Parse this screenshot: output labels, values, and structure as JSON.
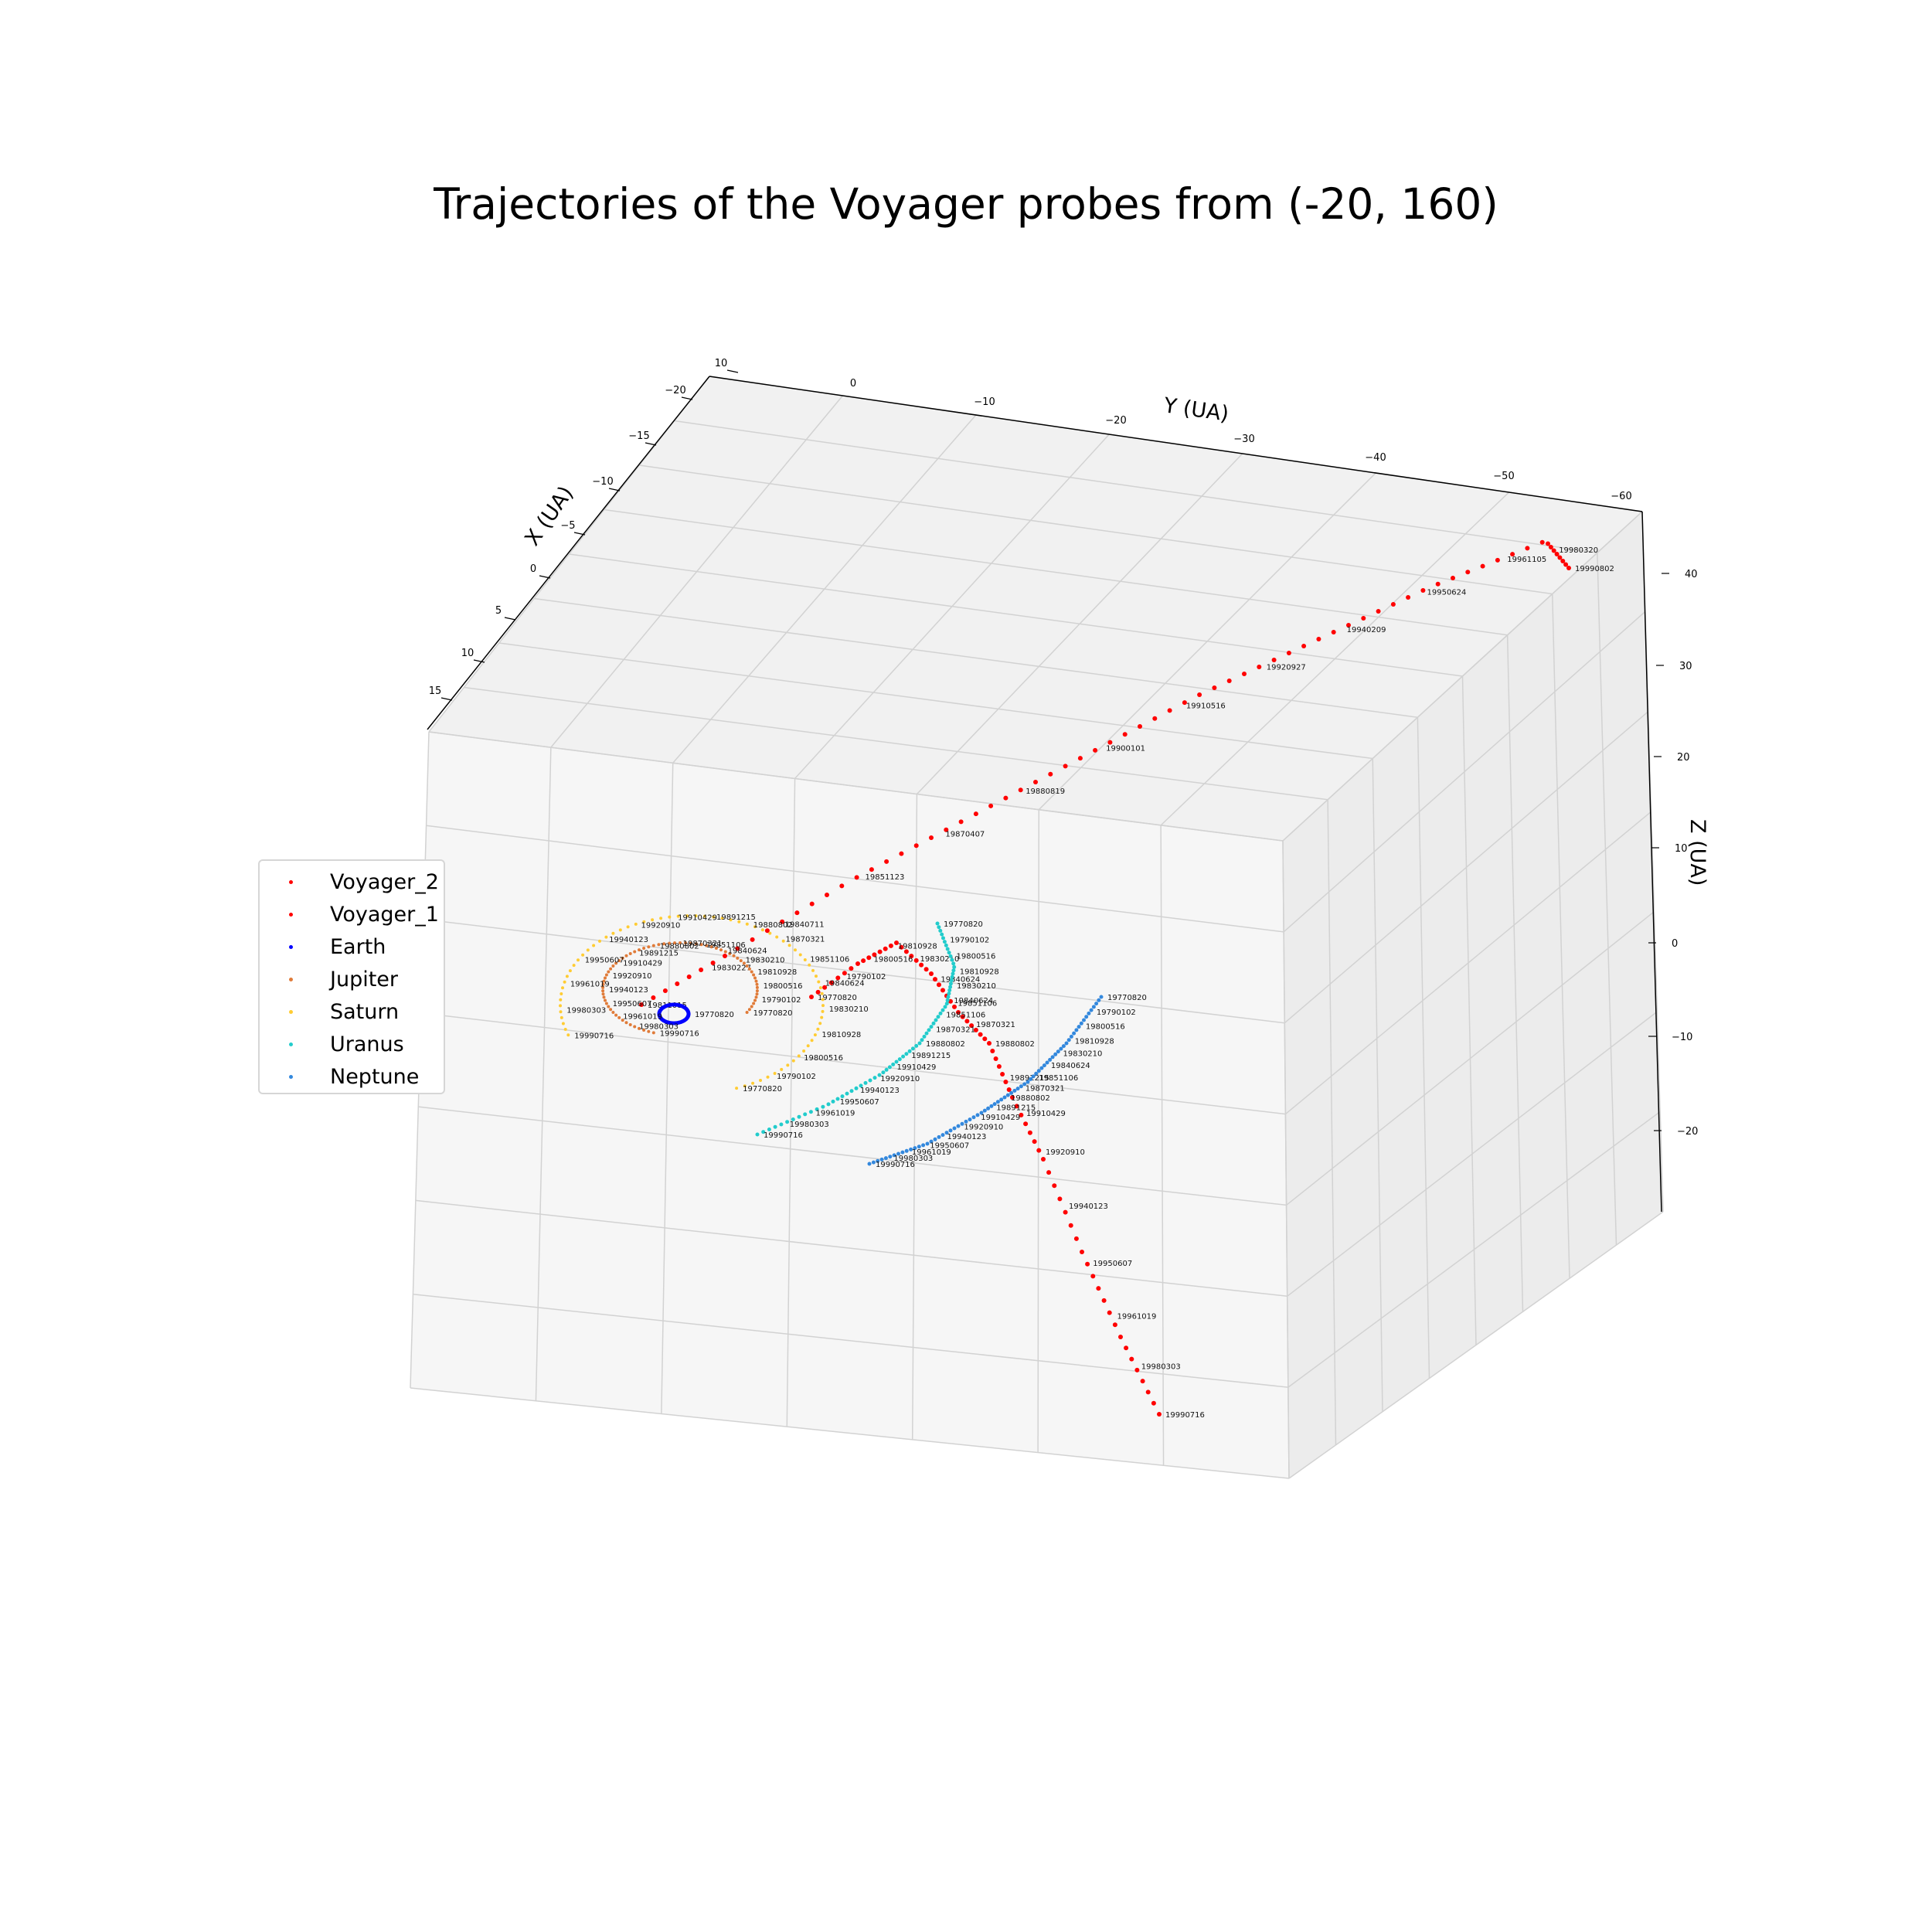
{
  "chart_data": {
    "type": "scatter3d",
    "title": "Trajectories of the Voyager probes from (-20, 160)",
    "xlabel": "X (UA)",
    "ylabel": "Y (UA)",
    "zlabel": "Z (UA)",
    "x_ticks": [
      "10",
      "−20",
      "−15",
      "−10",
      "−5",
      "0",
      "5",
      "10",
      "15"
    ],
    "y_ticks": [
      "0",
      "−10",
      "−20",
      "−30",
      "−40",
      "−50",
      "−60"
    ],
    "z_ticks": [
      "40",
      "30",
      "20",
      "10",
      "0",
      "−10",
      "−20"
    ],
    "grid": true,
    "legend_position": "left",
    "series": [
      {
        "name": "Voyager_2",
        "color": "#ff0000",
        "labels": [
          "19770820",
          "19790102",
          "19800516",
          "19810928",
          "19830210",
          "19840624",
          "19851106",
          "19870321",
          "19880802",
          "19891215",
          "19910429",
          "19920910",
          "19940123",
          "19950607",
          "19961019",
          "19980303",
          "19990716"
        ]
      },
      {
        "name": "Voyager_1",
        "color": "#ff0000",
        "labels": [
          "19811015",
          "19830227",
          "19840711",
          "19851123",
          "19870407",
          "19880819",
          "19900101",
          "19910516",
          "19920927",
          "19940209",
          "19950624",
          "19961105",
          "19980320",
          "19990802"
        ]
      },
      {
        "name": "Earth",
        "color": "#0000ff",
        "labels": [
          "19770820"
        ]
      },
      {
        "name": "Jupiter",
        "color": "#e07b39",
        "labels": [
          "19770820",
          "19790102",
          "19800516",
          "19810928",
          "19830210",
          "19840624",
          "19851106",
          "19870321",
          "19880802",
          "19891215",
          "19910429",
          "19920910",
          "19940123",
          "19950607",
          "19961019",
          "19980303",
          "19990716"
        ]
      },
      {
        "name": "Saturn",
        "color": "#ffcc33",
        "labels": [
          "19770820",
          "19790102",
          "19800516",
          "19810928",
          "19830210",
          "19840624",
          "19851106",
          "19870321",
          "19880802",
          "19891215",
          "19910429",
          "19920910",
          "19940123",
          "19950607",
          "19961019",
          "19980303",
          "19990716"
        ]
      },
      {
        "name": "Uranus",
        "color": "#22cccc",
        "labels": [
          "19770820",
          "19790102",
          "19800516",
          "19810928",
          "19830210",
          "19840624",
          "19851106",
          "19870321",
          "19880802",
          "19891215",
          "19910429",
          "19920910",
          "19940123",
          "19950607",
          "19961019",
          "19980303",
          "19990716"
        ]
      },
      {
        "name": "Neptune",
        "color": "#3388dd",
        "labels": [
          "19770820",
          "19790102",
          "19800516",
          "19810928",
          "19830210",
          "19840624",
          "19851106",
          "19870321",
          "19880802",
          "19891215",
          "19910429",
          "19920910",
          "19940123",
          "19950607",
          "19961019",
          "19980303",
          "19990716"
        ]
      }
    ]
  }
}
